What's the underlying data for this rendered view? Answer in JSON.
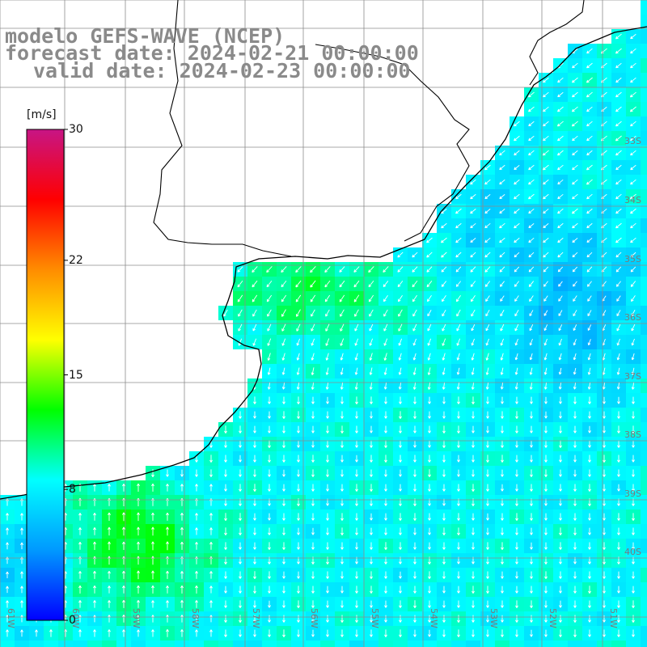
{
  "title": {
    "line1": "modelo GEFS-WAVE (NCEP)",
    "line2": "forecast date: 2024-02-21 00:00:00",
    "line3": "valid date: 2024-02-23 00:00:00"
  },
  "colorbar": {
    "unit": "[m/s]",
    "min": 0,
    "max": 30,
    "ticks": [
      {
        "label": "30",
        "value": 30
      },
      {
        "label": "22",
        "value": 22
      },
      {
        "label": "15",
        "value": 15
      },
      {
        "label": "8",
        "value": 8
      },
      {
        "label": "0",
        "value": 0
      }
    ],
    "colors": [
      "#0000ff",
      "#0099ff",
      "#00ffff",
      "#00ff00",
      "#ffff00",
      "#ff8c00",
      "#ff0000",
      "#c71585"
    ]
  },
  "longitude_labels": [
    "61W",
    "60W",
    "59W",
    "58W",
    "57W",
    "56W",
    "55W",
    "54W",
    "53W",
    "52W",
    "51W"
  ],
  "latitude_labels": [
    "33S",
    "34S",
    "35S",
    "36S",
    "37S",
    "38S",
    "39S",
    "40S"
  ],
  "field": "wind speed and direction"
}
